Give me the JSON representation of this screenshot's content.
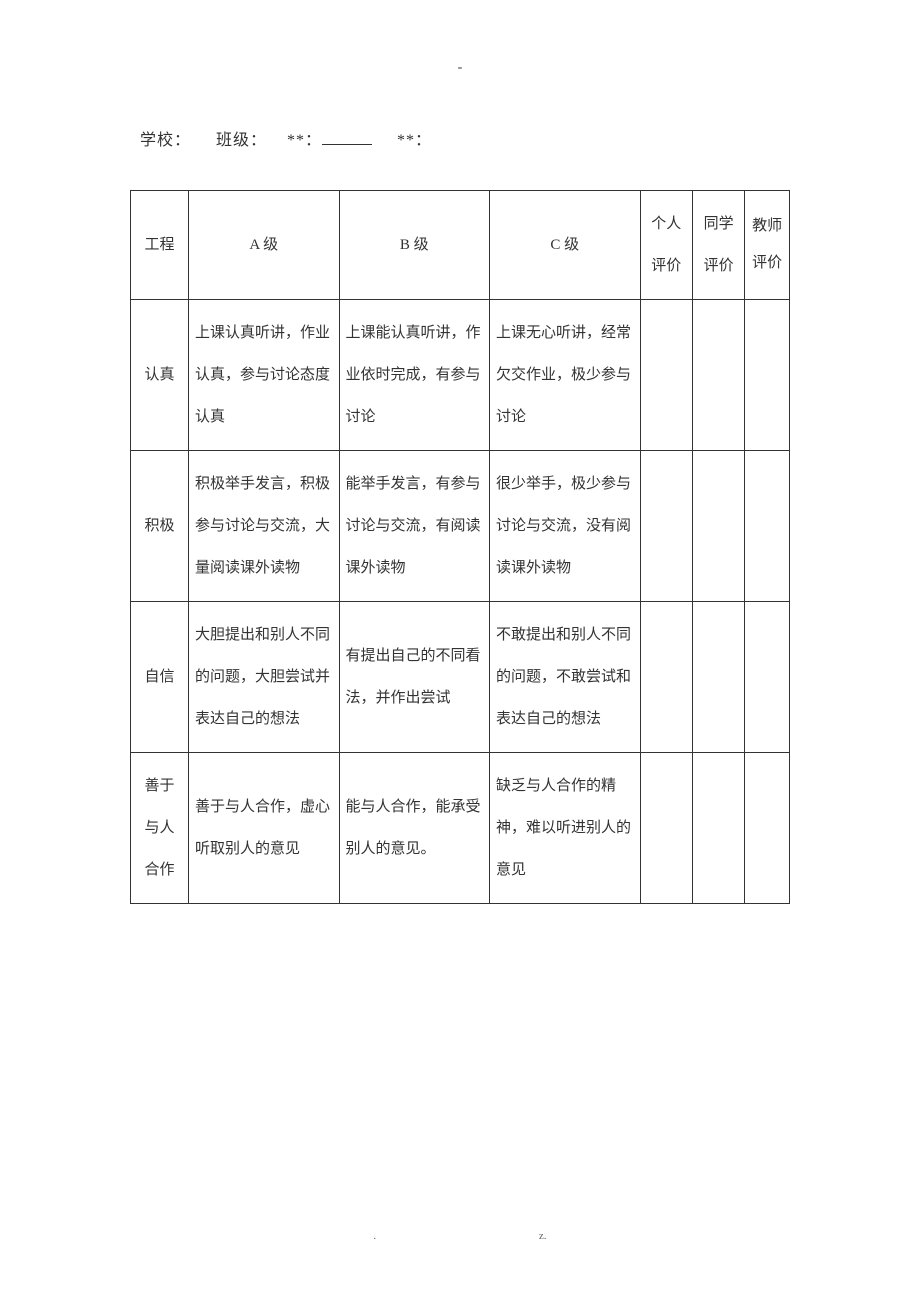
{
  "top_mark": "-",
  "form_line": {
    "school_label": "学校：",
    "class_label": "班级：",
    "star1": "**",
    "colon1": "：",
    "star2": "**",
    "colon2": "："
  },
  "headers": {
    "project": "工程",
    "levelA": "A 级",
    "levelB": "B 级",
    "levelC": "C 级",
    "self_eval": "个人评价",
    "peer_eval": "同学评价",
    "teacher_eval": "教师评价"
  },
  "rows": [
    {
      "project": "认真",
      "A": "上课认真听讲，作业认真，参与讨论态度认真",
      "B": "上课能认真听讲，作业依时完成，有参与讨论",
      "C": "上课无心听讲，经常欠交作业，极少参与讨论"
    },
    {
      "project": "积极",
      "A": "积极举手发言，积极参与讨论与交流，大量阅读课外读物",
      "B": "能举手发言，有参与讨论与交流，有阅读课外读物",
      "C": "很少举手，极少参与讨论与交流，没有阅读课外读物"
    },
    {
      "project": "自信",
      "A": "大胆提出和别人不同的问题，大胆尝试并表达自己的想法",
      "B": "有提出自己的不同看法，并作出尝试",
      "C": "不敢提出和别人不同的问题，不敢尝试和表达自己的想法"
    },
    {
      "project": "善于与人合作",
      "A": "善于与人合作，虚心听取别人的意见",
      "B": "能与人合作，能承受别人的意见。",
      "C": "缺乏与人合作的精神，难以听进别人的意见"
    }
  ],
  "footer": {
    "left": ".",
    "right": "z."
  },
  "style": {
    "page_bg": "#ffffff",
    "text_color": "#333333",
    "border_color": "#333333",
    "font_family": "SimSun",
    "base_fontsize": 15,
    "line_height": 2.8,
    "col_widths": {
      "project": 52,
      "level": 135,
      "eval": 47,
      "teacher": 40
    }
  }
}
